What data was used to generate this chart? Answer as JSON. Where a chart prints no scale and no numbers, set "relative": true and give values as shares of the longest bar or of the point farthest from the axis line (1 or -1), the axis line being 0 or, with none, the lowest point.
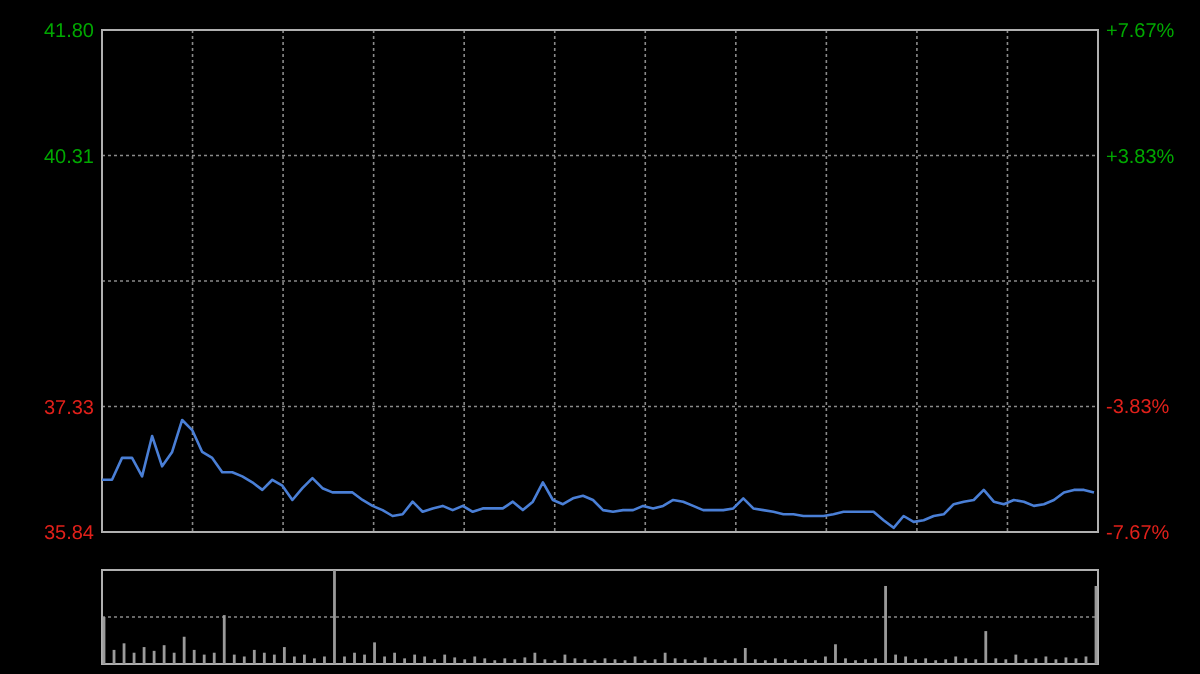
{
  "chart_data": [
    {
      "type": "line",
      "categories": [
        null,
        null,
        null,
        null,
        null,
        null,
        null,
        null,
        null,
        null,
        null,
        null,
        null,
        null,
        null,
        null,
        null,
        null,
        null,
        null,
        null,
        null,
        null,
        null,
        null,
        null,
        null,
        null,
        null,
        null,
        null,
        null,
        null,
        null,
        null,
        null,
        null,
        null,
        null,
        null,
        null,
        null,
        null,
        null,
        null,
        null,
        null,
        null,
        null,
        null,
        null,
        null,
        null,
        null,
        null,
        null,
        null,
        null,
        null,
        null,
        null,
        null,
        null,
        null,
        null,
        null,
        null,
        null,
        null,
        null,
        null,
        null,
        null,
        null,
        null,
        null,
        null,
        null,
        null,
        null,
        null,
        null,
        null,
        null,
        null,
        null,
        null,
        null,
        null,
        null,
        null,
        null,
        null,
        null,
        null,
        null,
        null,
        null,
        null,
        null
      ],
      "series": [
        {
          "color": "#4a7fd6",
          "values": [
            36.46,
            36.46,
            36.72,
            36.72,
            36.5,
            36.98,
            36.62,
            36.79,
            37.17,
            37.05,
            36.79,
            36.72,
            36.55,
            36.55,
            36.5,
            36.43,
            36.34,
            36.46,
            36.39,
            36.22,
            36.36,
            36.48,
            36.36,
            36.31,
            36.31,
            36.31,
            36.22,
            36.15,
            36.1,
            36.03,
            36.05,
            36.2,
            36.08,
            36.12,
            36.15,
            36.1,
            36.15,
            36.08,
            36.12,
            36.12,
            36.12,
            36.2,
            36.1,
            36.2,
            36.43,
            36.22,
            36.17,
            36.24,
            36.27,
            36.22,
            36.1,
            36.08,
            36.1,
            36.1,
            36.15,
            36.12,
            36.15,
            36.22,
            36.2,
            36.15,
            36.1,
            36.1,
            36.1,
            36.12,
            36.24,
            36.12,
            36.1,
            36.08,
            36.05,
            36.05,
            36.03,
            36.03,
            36.03,
            36.05,
            36.08,
            36.08,
            36.08,
            36.08,
            35.98,
            35.89,
            36.03,
            35.96,
            35.98,
            36.03,
            36.05,
            36.17,
            36.2,
            36.22,
            36.34,
            36.2,
            36.17,
            36.22,
            36.2,
            36.15,
            36.17,
            36.22,
            36.31,
            36.34,
            36.34,
            36.31
          ]
        }
      ],
      "ylim": [
        35.84,
        41.8
      ],
      "yticks": [
        35.84,
        37.33,
        {
          "value": 38.82,
          "label": null
        },
        40.31,
        {
          "value": 41.8,
          "label": "41.80"
        }
      ],
      "y2lim": [
        -7.67,
        7.67
      ],
      "y2ticks": [
        {
          "value": -7.67,
          "label": "-7.67%"
        },
        {
          "value": -3.83,
          "label": "-3.83%"
        },
        {
          "value": 3.83,
          "label": "+3.83%"
        },
        {
          "value": 7.67,
          "label": "+7.67%"
        }
      ],
      "grid": true
    },
    {
      "type": "bar",
      "relative": true,
      "categories": [
        null,
        null,
        null,
        null,
        null,
        null,
        null,
        null,
        null,
        null,
        null,
        null,
        null,
        null,
        null,
        null,
        null,
        null,
        null,
        null,
        null,
        null,
        null,
        null,
        null,
        null,
        null,
        null,
        null,
        null,
        null,
        null,
        null,
        null,
        null,
        null,
        null,
        null,
        null,
        null,
        null,
        null,
        null,
        null,
        null,
        null,
        null,
        null,
        null,
        null,
        null,
        null,
        null,
        null,
        null,
        null,
        null,
        null,
        null,
        null,
        null,
        null,
        null,
        null,
        null,
        null,
        null,
        null,
        null,
        null,
        null,
        null,
        null,
        null,
        null,
        null,
        null,
        null,
        null,
        null,
        null,
        null,
        null,
        null,
        null,
        null,
        null,
        null,
        null,
        null,
        null,
        null,
        null,
        null,
        null,
        null,
        null,
        null,
        null,
        null
      ],
      "color": "#9a9a9a",
      "values": [
        0.5,
        0.15,
        0.22,
        0.12,
        0.18,
        0.14,
        0.2,
        0.12,
        0.29,
        0.15,
        0.1,
        0.12,
        0.52,
        0.1,
        0.08,
        0.15,
        0.12,
        0.1,
        0.18,
        0.08,
        0.1,
        0.06,
        0.08,
        1,
        0.08,
        0.12,
        0.1,
        0.23,
        0.08,
        0.12,
        0.06,
        0.1,
        0.08,
        0.05,
        0.1,
        0.07,
        0.05,
        0.08,
        0.06,
        0.04,
        0.06,
        0.05,
        0.07,
        0.12,
        0.05,
        0.04,
        0.1,
        0.06,
        0.05,
        0.04,
        0.06,
        0.05,
        0.04,
        0.08,
        0.04,
        0.05,
        0.12,
        0.06,
        0.05,
        0.04,
        0.07,
        0.05,
        0.04,
        0.06,
        0.17,
        0.05,
        0.04,
        0.06,
        0.05,
        0.04,
        0.05,
        0.04,
        0.08,
        0.21,
        0.06,
        0.04,
        0.05,
        0.06,
        0.83,
        0.1,
        0.08,
        0.05,
        0.06,
        0.04,
        0.05,
        0.08,
        0.06,
        0.05,
        0.35,
        0.06,
        0.05,
        0.1,
        0.05,
        0.06,
        0.08,
        0.05,
        0.07,
        0.06,
        0.08,
        0.83
      ],
      "ref_lines": [
        {
          "axis": "y",
          "value": 0.5,
          "line_style": "dotted",
          "color": "#8a8a8a"
        }
      ]
    }
  ]
}
